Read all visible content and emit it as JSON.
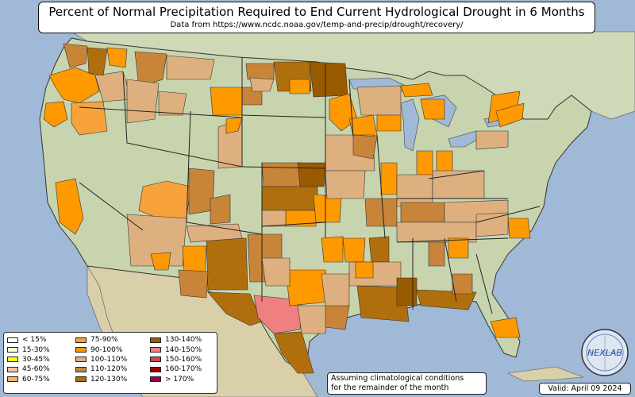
{
  "title": "Percent of Normal Precipitation Required to End Current Hydrological Drought in 6 Months",
  "subtitle": "Data from https://www.ncdc.noaa.gov/temp-and-precip/drought/recovery/",
  "legend": [
    {
      "label": "< 15%",
      "color": "#ffffff"
    },
    {
      "label": "15-30%",
      "color": "#ffffcc"
    },
    {
      "label": "30-45%",
      "color": "#ffff00"
    },
    {
      "label": "45-60%",
      "color": "#f7c79b"
    },
    {
      "label": "60-75%",
      "color": "#fbb15f"
    },
    {
      "label": "75-90%",
      "color": "#f7a23a"
    },
    {
      "label": "90-100%",
      "color": "#ff9900"
    },
    {
      "label": "100-110%",
      "color": "#deb07f"
    },
    {
      "label": "110-120%",
      "color": "#c88439"
    },
    {
      "label": "120-130%",
      "color": "#b06f0c"
    },
    {
      "label": "130-140%",
      "color": "#9a5a00"
    },
    {
      "label": "140-150%",
      "color": "#f08080"
    },
    {
      "label": "150-160%",
      "color": "#cd4b4b"
    },
    {
      "label": "160-170%",
      "color": "#a80000"
    },
    {
      "label": "> 170%",
      "color": "#9c0050"
    }
  ],
  "note": [
    "Assuming climatological conditions",
    "for the remainder of the month"
  ],
  "valid": "Valid: April 09 2024",
  "logo_text": "NEXLAB"
}
